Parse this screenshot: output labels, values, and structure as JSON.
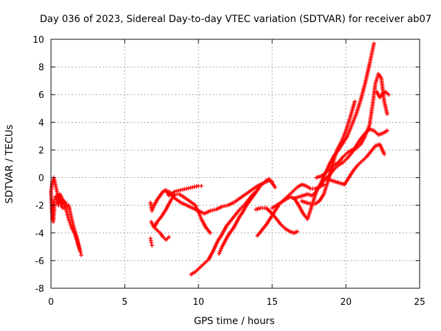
{
  "chart_data": {
    "type": "scatter",
    "title": "Day 036 of 2023, Sidereal Day-to-day VTEC variation (SDTVAR) for receiver ab07",
    "xlabel": "GPS time / hours",
    "ylabel": "SDTVAR / TECUs",
    "xlim": [
      0,
      25
    ],
    "ylim": [
      -8,
      10
    ],
    "xticks": [
      0,
      5,
      10,
      15,
      20,
      25
    ],
    "yticks": [
      -8,
      -6,
      -4,
      -2,
      0,
      2,
      4,
      6,
      8,
      10
    ],
    "grid": true,
    "marker": "+",
    "color": "#ff0000",
    "series": [
      {
        "x": [
          0.0,
          0.1,
          0.2,
          0.3,
          0.4,
          0.5,
          0.6,
          0.7,
          0.8,
          0.9
        ],
        "y": [
          -1.0,
          -0.3,
          0.0,
          -0.5,
          -1.0,
          -1.4,
          -1.7,
          -2.0,
          -2.2,
          -2.2
        ]
      },
      {
        "x": [
          0.0,
          0.05,
          0.1,
          0.15,
          0.2,
          0.25,
          0.3,
          0.4,
          0.5,
          0.6,
          0.7,
          0.8,
          0.9,
          1.0,
          1.1,
          1.2,
          1.4,
          1.6,
          1.8,
          1.9,
          2.0,
          2.05
        ],
        "y": [
          -1.0,
          -2.0,
          -3.0,
          -3.2,
          -2.6,
          -1.6,
          -1.4,
          -1.6,
          -2.0,
          -1.2,
          -1.4,
          -1.9,
          -1.7,
          -1.8,
          -2.1,
          -2.0,
          -3.0,
          -3.8,
          -4.5,
          -5.0,
          -5.4,
          -5.6
        ]
      },
      {
        "x": [
          0.4,
          0.6,
          0.8,
          1.0,
          1.2,
          1.4,
          1.6,
          1.8,
          2.0
        ],
        "y": [
          -1.3,
          -1.4,
          -1.6,
          -2.2,
          -3.0,
          -3.6,
          -4.0,
          -4.7,
          -5.4
        ]
      },
      {
        "x": [
          6.75,
          6.85,
          7.0,
          7.2,
          7.4,
          7.6,
          7.8,
          8.0,
          8.4,
          8.8,
          9.2,
          9.6,
          10.0,
          10.2
        ],
        "y": [
          -1.8,
          -2.4,
          -2.0,
          -1.6,
          -1.3,
          -1.0,
          -0.9,
          -1.3,
          -1.0,
          -0.9,
          -0.8,
          -0.7,
          -0.6,
          -0.6
        ]
      },
      {
        "x": [
          6.75,
          6.8,
          6.85
        ],
        "y": [
          -4.4,
          -4.7,
          -4.9
        ]
      },
      {
        "x": [
          6.8,
          7.0,
          7.2,
          7.4,
          7.6,
          7.8,
          8.0
        ],
        "y": [
          -3.2,
          -3.6,
          -3.8,
          -4.0,
          -4.3,
          -4.5,
          -4.3
        ]
      },
      {
        "x": [
          7.0,
          7.2,
          7.5,
          7.8,
          8.1,
          8.4,
          8.7,
          9.0,
          9.4,
          9.8,
          10.0,
          10.2,
          10.5,
          10.8
        ],
        "y": [
          -3.6,
          -3.2,
          -2.8,
          -2.3,
          -1.7,
          -1.2,
          -1.2,
          -1.4,
          -1.7,
          -2.0,
          -2.5,
          -3.0,
          -3.6,
          -4.0
        ]
      },
      {
        "x": [
          8.0,
          8.4,
          8.8,
          9.2,
          9.6,
          10.0,
          10.4,
          10.8,
          11.2,
          11.6,
          12.0,
          12.4,
          12.8,
          13.2,
          13.6,
          14.0,
          14.4,
          14.8,
          15.0,
          15.2
        ],
        "y": [
          -1.0,
          -1.5,
          -1.8,
          -2.0,
          -2.2,
          -2.4,
          -2.6,
          -2.4,
          -2.3,
          -2.1,
          -2.0,
          -1.8,
          -1.5,
          -1.2,
          -0.9,
          -0.6,
          -0.4,
          -0.2,
          -0.4,
          -0.7
        ]
      },
      {
        "x": [
          9.5,
          9.8,
          10.1,
          10.4,
          10.7,
          11.0,
          11.3,
          11.6,
          11.9,
          12.2,
          12.5,
          12.8,
          13.1,
          13.4,
          13.7,
          14.0
        ],
        "y": [
          -7.0,
          -6.8,
          -6.5,
          -6.2,
          -5.9,
          -5.3,
          -4.6,
          -4.1,
          -3.5,
          -3.1,
          -2.7,
          -2.3,
          -2.0,
          -1.6,
          -1.2,
          -0.9
        ]
      },
      {
        "x": [
          11.4,
          11.6,
          11.8,
          12.0,
          12.2,
          12.4,
          12.6,
          12.8,
          13.0,
          13.2,
          13.4,
          13.6,
          13.8,
          14.0,
          14.2,
          14.4,
          14.6,
          14.8,
          15.0
        ],
        "y": [
          -5.5,
          -5.0,
          -4.6,
          -4.2,
          -3.9,
          -3.6,
          -3.2,
          -2.8,
          -2.5,
          -2.1,
          -1.8,
          -1.5,
          -1.2,
          -0.9,
          -0.6,
          -0.4,
          -0.2,
          -0.1,
          -0.3
        ]
      },
      {
        "x": [
          14.0,
          14.3,
          14.6,
          14.9,
          15.2,
          15.5,
          15.8,
          16.1,
          16.4,
          16.7,
          17.0,
          17.3,
          17.6,
          17.9,
          18.2,
          18.5
        ],
        "y": [
          -4.2,
          -3.8,
          -3.4,
          -2.9,
          -2.4,
          -1.9,
          -1.6,
          -1.3,
          -1.0,
          -0.7,
          -0.5,
          -0.6,
          -0.8,
          -0.8,
          -0.7,
          -0.5
        ]
      },
      {
        "x": [
          13.9,
          14.2,
          14.6,
          15.0,
          15.3,
          15.6,
          15.9,
          16.2,
          16.5,
          16.7
        ],
        "y": [
          -2.3,
          -2.2,
          -2.2,
          -2.6,
          -3.0,
          -3.4,
          -3.7,
          -3.9,
          -4.0,
          -3.9
        ]
      },
      {
        "x": [
          15.0,
          15.3,
          15.6,
          15.9,
          16.2,
          16.5,
          16.8,
          17.1,
          17.4,
          17.7,
          18.0
        ],
        "y": [
          -2.2,
          -2.0,
          -1.8,
          -1.6,
          -1.4,
          -1.5,
          -2.0,
          -2.6,
          -3.0,
          -2.0,
          -1.0
        ]
      },
      {
        "x": [
          16.5,
          16.8,
          17.1,
          17.4,
          17.7,
          18.0,
          18.3,
          18.6,
          18.9,
          19.2,
          19.5,
          19.8,
          20.1,
          20.4,
          20.7,
          21.0,
          21.3,
          21.6,
          21.9
        ],
        "y": [
          -1.5,
          -1.4,
          -1.3,
          -1.2,
          -1.3,
          -1.0,
          -0.4,
          0.3,
          1.0,
          1.6,
          2.0,
          2.5,
          3.0,
          3.8,
          4.6,
          5.6,
          6.8,
          8.2,
          9.7
        ]
      },
      {
        "x": [
          17.0,
          17.3,
          17.6,
          17.9,
          18.2,
          18.5,
          18.8,
          19.1,
          19.4,
          19.7,
          20.0,
          20.3,
          20.6
        ],
        "y": [
          -1.7,
          -1.8,
          -1.9,
          -1.9,
          -1.7,
          -1.2,
          -0.2,
          1.0,
          2.0,
          2.6,
          3.4,
          4.4,
          5.5
        ]
      },
      {
        "x": [
          18.0,
          18.3,
          18.6,
          18.9,
          19.2,
          19.5,
          19.8,
          20.1,
          20.4,
          20.7,
          21.0,
          21.3,
          21.6,
          21.8,
          22.0,
          22.2,
          22.4,
          22.6,
          22.8
        ],
        "y": [
          0.0,
          0.1,
          0.3,
          0.6,
          0.9,
          1.1,
          1.5,
          1.8,
          2.0,
          2.1,
          2.4,
          3.0,
          3.8,
          5.2,
          6.8,
          7.5,
          7.2,
          5.5,
          4.6
        ]
      },
      {
        "x": [
          18.3,
          18.6,
          18.9,
          19.2,
          19.5,
          19.8,
          20.1,
          20.4,
          20.7,
          21.0,
          21.3,
          21.6,
          21.9,
          22.2,
          22.5,
          22.8
        ],
        "y": [
          -0.5,
          -0.1,
          0.2,
          0.6,
          0.9,
          1.1,
          1.4,
          1.8,
          2.3,
          2.8,
          3.2,
          3.5,
          3.4,
          3.1,
          3.2,
          3.4
        ]
      },
      {
        "x": [
          18.7,
          19.0,
          19.3,
          19.6,
          19.9,
          20.2,
          20.5,
          20.8,
          21.1,
          21.4,
          21.7,
          22.0,
          22.3,
          22.6
        ],
        "y": [
          -0.1,
          -0.2,
          -0.3,
          -0.4,
          -0.5,
          0.0,
          0.5,
          0.9,
          1.2,
          1.5,
          1.9,
          2.3,
          2.4,
          1.7
        ]
      },
      {
        "x": [
          22.1,
          22.3,
          22.5,
          22.7,
          22.9
        ],
        "y": [
          6.2,
          5.8,
          6.1,
          6.2,
          6.0
        ]
      }
    ]
  }
}
